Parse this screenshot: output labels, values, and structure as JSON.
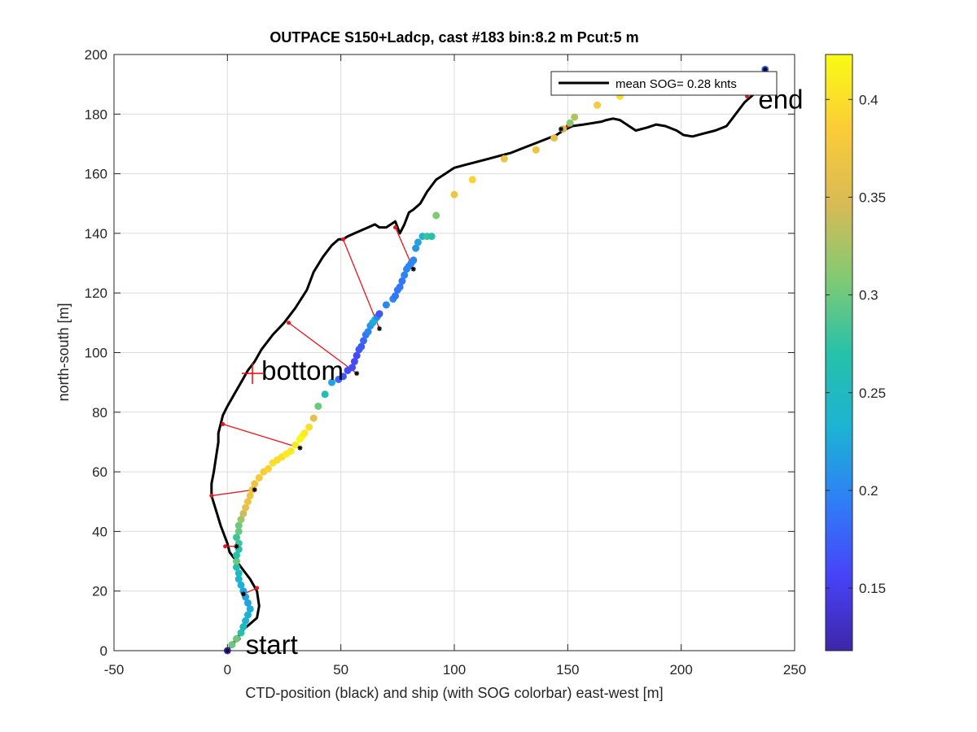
{
  "chart_data": {
    "type": "scatter",
    "title": "OUTPACE S150+Ladcp, cast #183 bin:8.2 m  Pcut:5 m",
    "xlabel": "CTD-position (black) and ship (with SOG colorbar) east-west [m]",
    "ylabel": "north-south [m]",
    "xlim": [
      -50,
      250
    ],
    "ylim": [
      0,
      200
    ],
    "xticks": [
      "-50",
      "0",
      "50",
      "100",
      "150",
      "200",
      "250"
    ],
    "yticks": [
      "0",
      "20",
      "40",
      "60",
      "80",
      "100",
      "120",
      "140",
      "160",
      "180",
      "200"
    ],
    "grid": true,
    "legend": {
      "label": "mean SOG=  0.28 knts",
      "position": "top-right"
    },
    "colorbar": {
      "range": [
        0.118,
        0.423
      ],
      "ticks": [
        "0.15",
        "0.2",
        "0.25",
        "0.3",
        "0.35",
        "0.4"
      ],
      "colormap": [
        "#3e26a8",
        "#4743f8",
        "#2f7ef7",
        "#1cb3d3",
        "#27c1a9",
        "#82ca73",
        "#d9ba55",
        "#fbcc37",
        "#f9fb15"
      ]
    },
    "ctd_track": {
      "color": "#000000",
      "x": [
        0,
        1,
        3,
        5,
        7,
        10,
        13,
        14,
        13,
        10,
        6,
        3,
        1,
        0,
        -1,
        -3,
        -5,
        -7,
        -7,
        -6,
        -5,
        -4,
        -4,
        -3,
        -2,
        0,
        3,
        6,
        9,
        12,
        15,
        20,
        25,
        30,
        35,
        38,
        42,
        46,
        49,
        51,
        53,
        56,
        59,
        62,
        65,
        67,
        70,
        72,
        74,
        76,
        78,
        80,
        82,
        85,
        88,
        92,
        96,
        100,
        105,
        110,
        115,
        120,
        125,
        130,
        135,
        140,
        145,
        148,
        152,
        157,
        161,
        165,
        167,
        170,
        173,
        177,
        180,
        185,
        189,
        193,
        198,
        201,
        205,
        210,
        215,
        220,
        222,
        225,
        228,
        231,
        234,
        236,
        237
      ],
      "y": [
        0,
        1,
        3,
        5,
        7,
        9,
        11,
        15,
        20,
        24,
        28,
        31,
        33,
        36,
        38,
        42,
        47,
        52,
        56,
        60,
        65,
        70,
        73,
        76,
        79,
        82,
        86,
        90,
        94,
        97,
        101,
        106,
        110,
        115,
        121,
        127,
        132,
        136,
        138,
        138,
        139,
        140,
        141,
        142,
        143,
        142,
        142,
        143,
        144,
        140,
        143,
        147,
        148,
        150,
        154,
        158,
        160,
        162,
        163,
        164,
        165,
        166,
        167,
        168.5,
        170,
        171.5,
        173,
        174.5,
        176,
        176.5,
        177,
        177.5,
        178,
        178.5,
        178,
        176,
        174.5,
        175.5,
        176.5,
        176,
        174.5,
        173,
        172.5,
        173.5,
        174.5,
        176,
        178,
        181,
        184,
        186,
        188,
        191,
        195
      ]
    },
    "ship_track": {
      "x": [
        0,
        2,
        4,
        6,
        7,
        8,
        9,
        10,
        9,
        8,
        7,
        6,
        5,
        5,
        4,
        4,
        4,
        5,
        5,
        4,
        5,
        5,
        6,
        7,
        8,
        9,
        10,
        11,
        12,
        14,
        16,
        18,
        20,
        22,
        24,
        26,
        28,
        30,
        32,
        33,
        34,
        36,
        38,
        40,
        43,
        46,
        49,
        51,
        53,
        55,
        56,
        57,
        58,
        59,
        60,
        61,
        62,
        63,
        64,
        65,
        66,
        67,
        70,
        73,
        74,
        75,
        76,
        77,
        78,
        79,
        80,
        81,
        82,
        83,
        84,
        86,
        88,
        90,
        92,
        100,
        108,
        122,
        136,
        144,
        148,
        151,
        153,
        163,
        173,
        237
      ],
      "y": [
        0,
        2,
        4,
        6,
        8,
        10,
        12,
        14,
        16,
        18,
        20,
        22,
        24,
        26,
        28,
        30,
        32,
        34,
        36,
        38,
        40,
        42,
        44,
        46,
        48,
        50,
        52,
        54,
        56,
        58,
        60,
        61,
        63,
        64,
        65,
        66,
        67,
        69,
        71,
        72,
        73,
        75,
        78,
        82,
        86,
        90,
        91,
        92,
        94,
        95,
        97,
        99,
        101,
        102,
        104,
        106,
        107,
        109,
        110,
        111,
        112,
        113,
        116,
        118,
        119,
        121,
        122,
        124,
        126,
        128,
        129,
        130,
        131,
        135,
        137,
        139,
        139,
        139,
        146,
        153,
        158,
        165,
        168,
        172,
        175,
        177,
        179,
        183,
        186,
        195
      ],
      "sog": [
        0.13,
        0.3,
        0.3,
        0.27,
        0.25,
        0.24,
        0.23,
        0.23,
        0.22,
        0.22,
        0.22,
        0.23,
        0.24,
        0.25,
        0.26,
        0.3,
        0.27,
        0.27,
        0.28,
        0.28,
        0.3,
        0.3,
        0.32,
        0.34,
        0.36,
        0.37,
        0.37,
        0.37,
        0.37,
        0.38,
        0.38,
        0.39,
        0.4,
        0.4,
        0.4,
        0.41,
        0.41,
        0.41,
        0.42,
        0.42,
        0.41,
        0.4,
        0.36,
        0.3,
        0.26,
        0.22,
        0.18,
        0.17,
        0.16,
        0.16,
        0.16,
        0.16,
        0.17,
        0.17,
        0.18,
        0.19,
        0.2,
        0.21,
        0.22,
        0.23,
        0.2,
        0.17,
        0.2,
        0.2,
        0.19,
        0.19,
        0.19,
        0.19,
        0.2,
        0.2,
        0.2,
        0.2,
        0.2,
        0.21,
        0.22,
        0.24,
        0.28,
        0.27,
        0.31,
        0.37,
        0.39,
        0.37,
        0.37,
        0.36,
        0.34,
        0.31,
        0.33,
        0.38,
        0.4,
        0.18
      ]
    },
    "pairing_lines": [
      {
        "ctd": [
          -1,
          35
        ],
        "ship": [
          4,
          35
        ]
      },
      {
        "ctd": [
          13,
          21
        ],
        "ship": [
          7,
          19
        ]
      },
      {
        "ctd": [
          -7,
          52
        ],
        "ship": [
          12,
          54
        ]
      },
      {
        "ctd": [
          -2,
          76
        ],
        "ship": [
          32,
          68
        ]
      },
      {
        "ctd": [
          27,
          110
        ],
        "ship": [
          57,
          93
        ]
      },
      {
        "ctd": [
          51,
          138
        ],
        "ship": [
          67,
          108
        ]
      },
      {
        "ctd": [
          74,
          142
        ],
        "ship": [
          82,
          128
        ]
      },
      {
        "ctd": [
          5,
          4
        ],
        "ship": [
          0,
          0
        ]
      },
      {
        "ctd": [
          150,
          176
        ],
        "ship": [
          147,
          175
        ]
      },
      {
        "ctd": [
          229,
          186
        ],
        "ship": [
          237,
          195
        ]
      }
    ],
    "annotations": [
      {
        "label": "start",
        "x": 8,
        "y": 0
      },
      {
        "label": "bottom",
        "x": 15,
        "y": 92
      },
      {
        "label": "end",
        "x": 234,
        "y": 183
      }
    ],
    "bottom_marker": {
      "x": 11,
      "y": 93
    }
  }
}
